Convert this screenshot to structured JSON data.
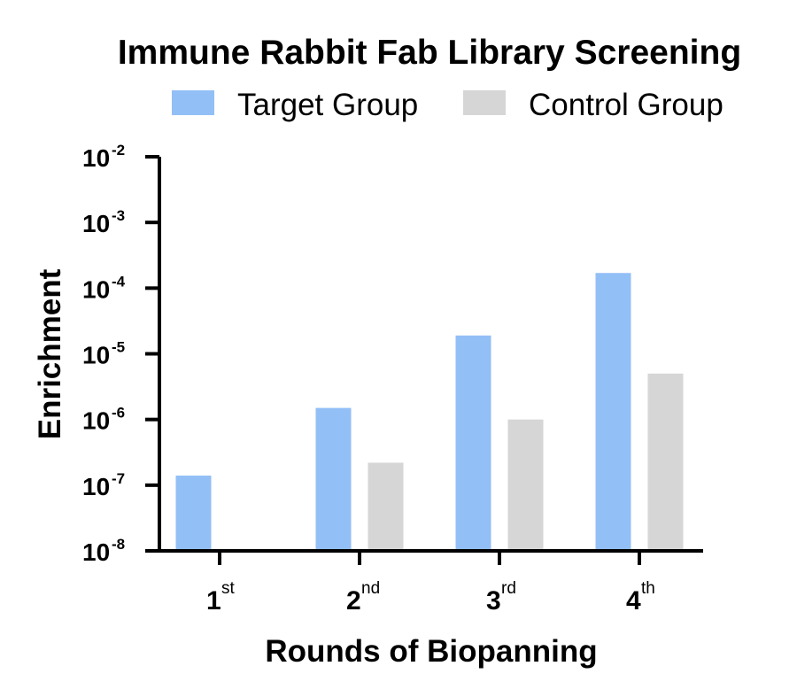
{
  "chart_data": {
    "type": "bar",
    "title": "Immune Rabbit Fab Library Screening",
    "xlabel": "Rounds of Biopanning",
    "ylabel": "Enrichment",
    "yscale": "log",
    "ylim": [
      1e-08,
      0.01
    ],
    "y_ticks": [
      {
        "base": "10",
        "exp": "-2"
      },
      {
        "base": "10",
        "exp": "-3"
      },
      {
        "base": "10",
        "exp": "-4"
      },
      {
        "base": "10",
        "exp": "-5"
      },
      {
        "base": "10",
        "exp": "-6"
      },
      {
        "base": "10",
        "exp": "-7"
      },
      {
        "base": "10",
        "exp": "-8"
      }
    ],
    "categories": [
      {
        "main": "1",
        "sup": "st"
      },
      {
        "main": "2",
        "sup": "nd"
      },
      {
        "main": "3",
        "sup": "rd"
      },
      {
        "main": "4",
        "sup": "th"
      }
    ],
    "series": [
      {
        "name": "Target Group",
        "color": "#93BFF7",
        "values": [
          1.4e-07,
          1.5e-06,
          1.9e-05,
          0.00017
        ]
      },
      {
        "name": "Control Group",
        "color": "#D6D6D6",
        "values": [
          null,
          2.2e-07,
          1e-06,
          5e-06
        ]
      }
    ],
    "legend_position": "top-center",
    "grid": false
  }
}
